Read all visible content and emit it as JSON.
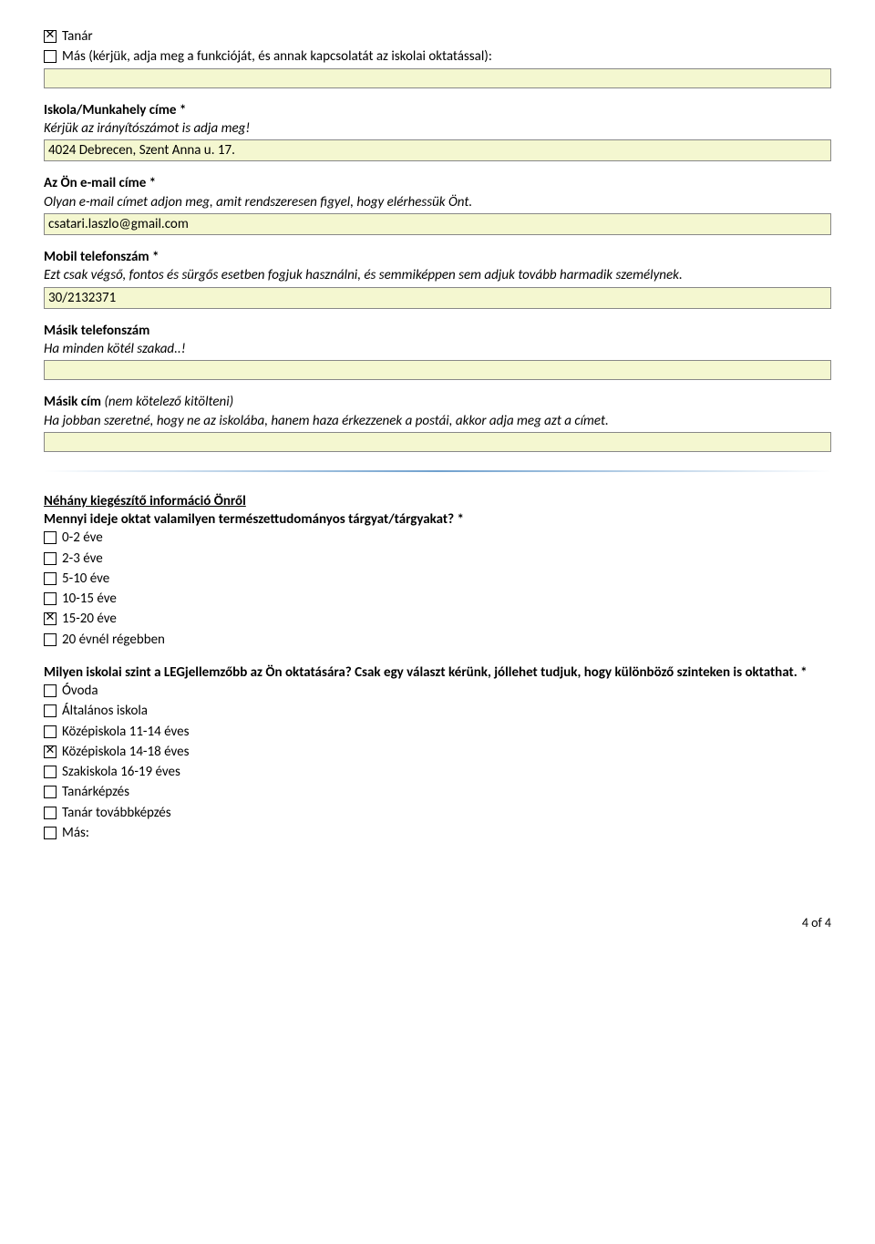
{
  "colors": {
    "input_bg": "#f4f7d0",
    "input_border": "#888888",
    "divider": "#6096c8",
    "text": "#000000"
  },
  "typography": {
    "font_family": "Calibri",
    "base_size_pt": 11,
    "bold_weight": 700
  },
  "top_checks": [
    {
      "checked": true,
      "label": "Tanár"
    },
    {
      "checked": false,
      "label": "Más (kérjük, adja meg a funkcióját, és annak kapcsolatát az iskolai oktatással):"
    }
  ],
  "top_other_value": "",
  "fields": {
    "workplace": {
      "label": "Iskola/Munkahely címe *",
      "hint": "Kérjük az irányítószámot is adja meg!",
      "value": "4024 Debrecen, Szent Anna u. 17."
    },
    "email": {
      "label": "Az Ön e-mail címe *",
      "hint": "Olyan e-mail címet adjon meg, amit rendszeresen figyel, hogy elérhessük Önt.",
      "value": "csatari.laszlo@gmail.com"
    },
    "mobile": {
      "label": "Mobil telefonszám *",
      "hint": "Ezt csak végső, fontos és sürgős esetben fogjuk használni, és semmiképpen sem adjuk tovább harmadik személynek.",
      "value": "30/2132371"
    },
    "other_phone": {
      "label": "Másik telefonszám",
      "hint": "Ha minden kötél szakad..!",
      "value": ""
    },
    "other_address": {
      "label": "Másik cím",
      "label_suffix": " (nem kötelező kitölteni)",
      "hint": "Ha jobban szeretné, hogy ne az iskolába, hanem haza érkezzenek a postái, akkor adja meg azt a címet.",
      "value": ""
    }
  },
  "section2_title": "Néhány kiegészítő információ Önről",
  "q_experience": {
    "question": "Mennyi ideje oktat valamilyen természettudományos tárgyat/tárgyakat? *",
    "options": [
      {
        "checked": false,
        "label": "0-2 éve"
      },
      {
        "checked": false,
        "label": "2-3 éve"
      },
      {
        "checked": false,
        "label": "5-10 éve"
      },
      {
        "checked": false,
        "label": "10-15 éve"
      },
      {
        "checked": true,
        "label": "15-20 éve"
      },
      {
        "checked": false,
        "label": "20 évnél régebben"
      }
    ]
  },
  "q_level": {
    "question": "Milyen iskolai szint a LEGjellemzőbb az Ön oktatására? Csak egy választ kérünk, jóllehet tudjuk, hogy különböző szinteken is oktathat. *",
    "options": [
      {
        "checked": false,
        "label": "Óvoda"
      },
      {
        "checked": false,
        "label": "Általános iskola"
      },
      {
        "checked": false,
        "label": "Középiskola 11-14 éves"
      },
      {
        "checked": true,
        "label": "Középiskola 14-18 éves"
      },
      {
        "checked": false,
        "label": "Szakiskola 16-19 éves"
      },
      {
        "checked": false,
        "label": "Tanárképzés"
      },
      {
        "checked": false,
        "label": "Tanár továbbképzés"
      },
      {
        "checked": false,
        "label": "Más:"
      }
    ]
  },
  "footer": "4 of 4"
}
